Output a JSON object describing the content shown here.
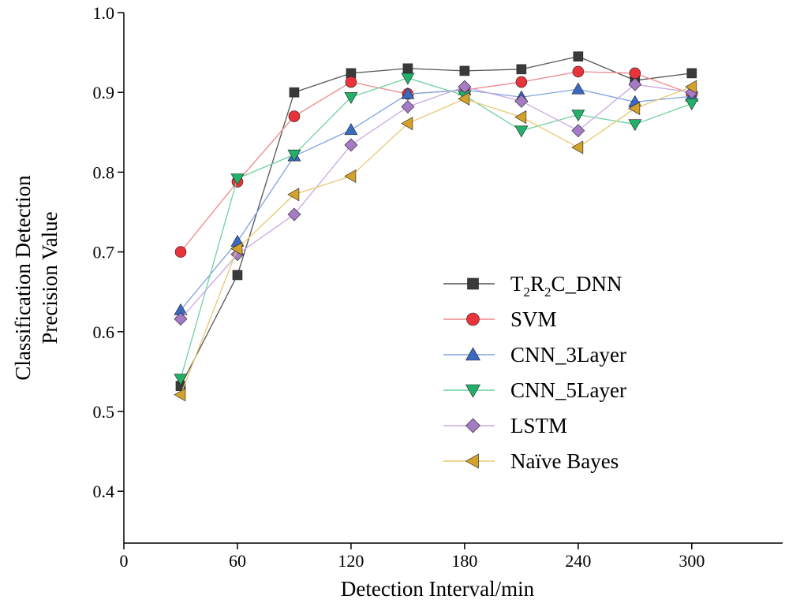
{
  "chart_data": {
    "type": "line",
    "title": "",
    "xlabel": "Detection Interval/min",
    "ylabel_line1": "Classification Detection",
    "ylabel_line2": "Precision Value",
    "xlim": [
      0,
      348
    ],
    "ylim": [
      0.335,
      1.0
    ],
    "xticks": [
      0,
      60,
      120,
      180,
      240,
      300
    ],
    "xtick_labels": [
      "0",
      "60",
      "120",
      "180",
      "240",
      "300"
    ],
    "yticks": [
      0.4,
      0.5,
      0.6,
      0.7,
      0.8,
      0.9,
      1.0
    ],
    "ytick_labels": [
      "0.4",
      "0.5",
      "0.6",
      "0.7",
      "0.8",
      "0.9",
      "1.0"
    ],
    "grid": false,
    "legend_position": "center-right",
    "x": [
      30,
      60,
      90,
      120,
      150,
      180,
      210,
      240,
      270,
      300
    ],
    "series": [
      {
        "name": "T2R2C_DNN",
        "legend_main": "T",
        "legend_sub1": "2",
        "legend_mid": "R",
        "legend_sub2": "2",
        "legend_tail": "C_DNN",
        "marker": "square",
        "color": "#3a3a3a",
        "line_color": "#555555",
        "values": [
          0.532,
          0.671,
          0.9,
          0.924,
          0.93,
          0.927,
          0.929,
          0.945,
          0.915,
          0.924
        ]
      },
      {
        "name": "SVM",
        "marker": "circle",
        "color": "#e8333a",
        "line_color": "#ef8a8c",
        "values": [
          0.7,
          0.788,
          0.87,
          0.913,
          0.898,
          0.903,
          0.913,
          0.926,
          0.924,
          0.898
        ]
      },
      {
        "name": "CNN_3Layer",
        "marker": "triangle-up",
        "color": "#3a69c0",
        "line_color": "#7fa3e0",
        "values": [
          0.627,
          0.713,
          0.82,
          0.853,
          0.898,
          0.903,
          0.894,
          0.904,
          0.888,
          0.895
        ]
      },
      {
        "name": "CNN_5Layer",
        "marker": "triangle-down",
        "color": "#23b06a",
        "line_color": "#6fd29e",
        "values": [
          0.541,
          0.792,
          0.822,
          0.894,
          0.918,
          0.896,
          0.852,
          0.872,
          0.86,
          0.886
        ]
      },
      {
        "name": "LSTM",
        "marker": "diamond",
        "color": "#a47bc4",
        "line_color": "#c8a8e0",
        "values": [
          0.616,
          0.697,
          0.747,
          0.834,
          0.882,
          0.907,
          0.889,
          0.852,
          0.91,
          0.9
        ]
      },
      {
        "name": "Naïve Bayes",
        "marker": "triangle-left",
        "color": "#d4a12a",
        "line_color": "#e8c770",
        "values": [
          0.521,
          0.704,
          0.772,
          0.795,
          0.861,
          0.892,
          0.869,
          0.831,
          0.88,
          0.907
        ]
      }
    ]
  }
}
